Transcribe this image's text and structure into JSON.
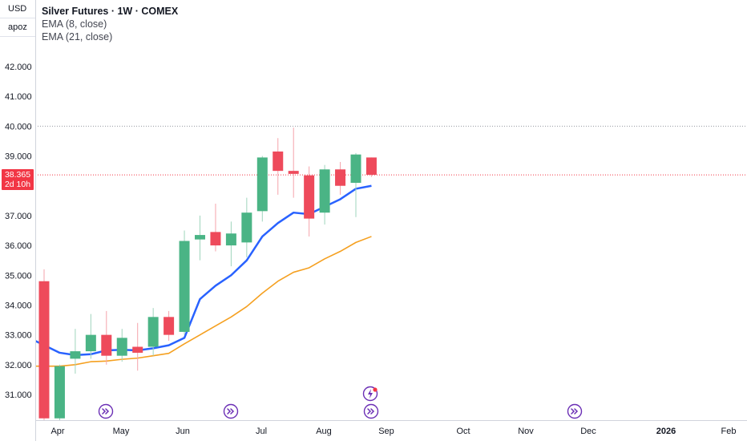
{
  "axis_box": {
    "currency": "USD",
    "scale_mode": "apoz"
  },
  "legend": {
    "title": "Silver Futures · 1W · COMEX",
    "indicators": [
      "EMA (8, close)",
      "EMA (21, close)"
    ]
  },
  "last_price": {
    "value": "38.365",
    "countdown": "2d 10h",
    "color": "#f23645"
  },
  "colors": {
    "up": "#4ab485",
    "down": "#ee4a5b",
    "ema_fast": "#2962ff",
    "ema_slow": "#f5a020",
    "axis_text": "#131722"
  },
  "chart_data": {
    "type": "candlestick",
    "title": "Silver Futures · 1W · COMEX",
    "y_ticks": [
      "31.000",
      "32.000",
      "33.000",
      "34.000",
      "35.000",
      "36.000",
      "37.000",
      "38.000",
      "39.000",
      "40.000",
      "41.000",
      "42.000"
    ],
    "ylim": [
      30.2,
      42.8
    ],
    "x_ticks": [
      "Apr",
      "May",
      "Jun",
      "Jul",
      "Aug",
      "Sep",
      "Oct",
      "Nov",
      "Dec",
      "2026",
      "Feb"
    ],
    "reference_lines": [
      40.0
    ],
    "candles": [
      {
        "week": 1,
        "open": 34.8,
        "high": 35.2,
        "low": 29.8,
        "close": 30.2
      },
      {
        "week": 2,
        "open": 30.2,
        "high": 32.0,
        "low": 29.7,
        "close": 31.95
      },
      {
        "week": 3,
        "open": 32.2,
        "high": 33.2,
        "low": 31.7,
        "close": 32.45
      },
      {
        "week": 4,
        "open": 32.45,
        "high": 33.7,
        "low": 32.2,
        "close": 33.0
      },
      {
        "week": 5,
        "open": 33.0,
        "high": 33.8,
        "low": 32.0,
        "close": 32.3
      },
      {
        "week": 6,
        "open": 32.3,
        "high": 33.2,
        "low": 32.1,
        "close": 32.9
      },
      {
        "week": 7,
        "open": 32.6,
        "high": 33.4,
        "low": 31.8,
        "close": 32.4
      },
      {
        "week": 8,
        "open": 32.6,
        "high": 33.9,
        "low": 32.3,
        "close": 33.6
      },
      {
        "week": 9,
        "open": 33.6,
        "high": 33.8,
        "low": 32.8,
        "close": 33.0
      },
      {
        "week": 10,
        "open": 33.1,
        "high": 36.5,
        "low": 33.0,
        "close": 36.15
      },
      {
        "week": 11,
        "open": 36.2,
        "high": 37.0,
        "low": 35.5,
        "close": 36.35
      },
      {
        "week": 12,
        "open": 36.45,
        "high": 37.4,
        "low": 35.8,
        "close": 36.0
      },
      {
        "week": 13,
        "open": 36.0,
        "high": 36.8,
        "low": 35.3,
        "close": 36.4
      },
      {
        "week": 14,
        "open": 36.1,
        "high": 37.6,
        "low": 35.6,
        "close": 37.1
      },
      {
        "week": 15,
        "open": 37.15,
        "high": 39.0,
        "low": 36.8,
        "close": 38.95
      },
      {
        "week": 16,
        "open": 39.15,
        "high": 39.6,
        "low": 37.7,
        "close": 38.5
      },
      {
        "week": 17,
        "open": 38.5,
        "high": 39.95,
        "low": 37.6,
        "close": 38.4
      },
      {
        "week": 18,
        "open": 38.35,
        "high": 38.65,
        "low": 36.3,
        "close": 36.9
      },
      {
        "week": 19,
        "open": 37.1,
        "high": 38.7,
        "low": 36.7,
        "close": 38.55
      },
      {
        "week": 20,
        "open": 38.55,
        "high": 38.8,
        "low": 37.7,
        "close": 38.0
      },
      {
        "week": 21,
        "open": 38.1,
        "high": 39.1,
        "low": 36.95,
        "close": 39.05
      },
      {
        "week": 22,
        "open": 38.95,
        "high": 38.95,
        "low": 38.3,
        "close": 38.37
      }
    ],
    "series": [
      {
        "name": "EMA (8, close)",
        "color": "#2962ff",
        "values": [
          32.8,
          32.4,
          32.32,
          32.35,
          32.48,
          32.5,
          32.48,
          32.55,
          32.65,
          32.9,
          34.2,
          34.65,
          35.0,
          35.5,
          36.3,
          36.75,
          37.1,
          37.05,
          37.3,
          37.55,
          37.9,
          38.0
        ]
      },
      {
        "name": "EMA (21, close)",
        "color": "#f5a020",
        "values": [
          31.95,
          31.95,
          32.0,
          32.1,
          32.12,
          32.18,
          32.22,
          32.3,
          32.38,
          32.7,
          33.0,
          33.3,
          33.6,
          33.95,
          34.4,
          34.8,
          35.1,
          35.25,
          35.55,
          35.8,
          36.1,
          36.3
        ]
      }
    ]
  }
}
